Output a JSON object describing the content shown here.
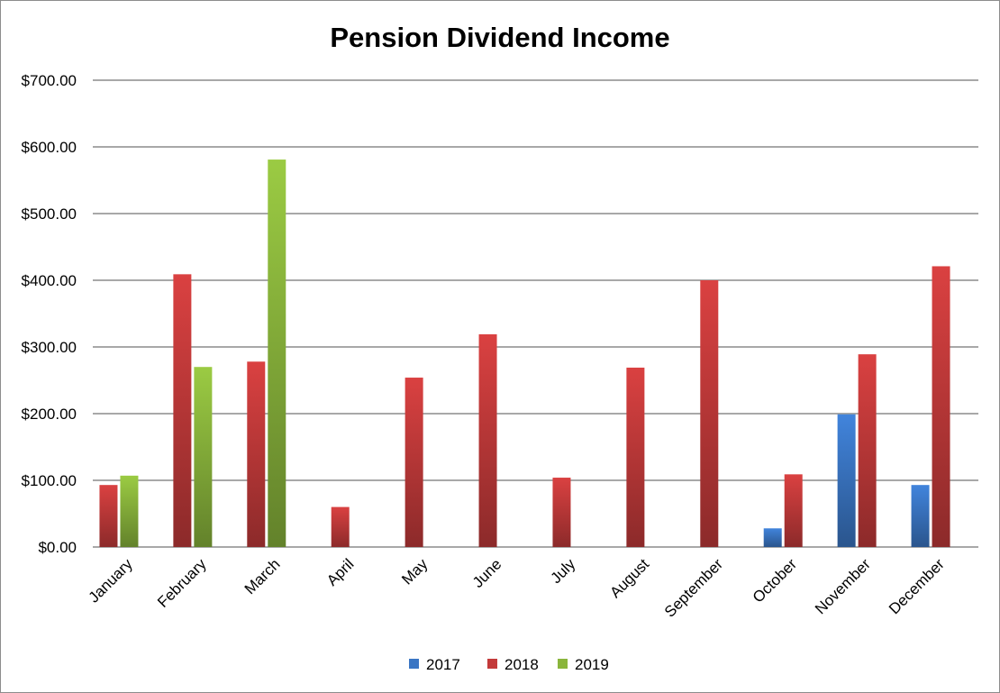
{
  "chart_data": {
    "type": "bar",
    "title": "Pension Dividend Income",
    "xlabel": "",
    "ylabel": "",
    "ylim": [
      0,
      700
    ],
    "yticks": [
      0,
      100,
      200,
      300,
      400,
      500,
      600,
      700
    ],
    "ytick_labels": [
      "$0.00",
      "$100.00",
      "$200.00",
      "$300.00",
      "$400.00",
      "$500.00",
      "$600.00",
      "$700.00"
    ],
    "grid": true,
    "legend": "bottom",
    "categories": [
      "January",
      "February",
      "March",
      "April",
      "May",
      "June",
      "July",
      "August",
      "September",
      "October",
      "November",
      "December"
    ],
    "series": [
      {
        "name": "2017",
        "color": "#3a76c4",
        "values": [
          null,
          null,
          null,
          null,
          null,
          null,
          null,
          null,
          null,
          28,
          199,
          93
        ]
      },
      {
        "name": "2018",
        "color": "#c33a3a",
        "values": [
          93,
          409,
          278,
          60,
          254,
          319,
          104,
          269,
          400,
          109,
          289,
          421
        ]
      },
      {
        "name": "2019",
        "color": "#8ab53c",
        "values": [
          107,
          270,
          581,
          null,
          null,
          null,
          null,
          null,
          null,
          null,
          null,
          null
        ]
      }
    ]
  }
}
